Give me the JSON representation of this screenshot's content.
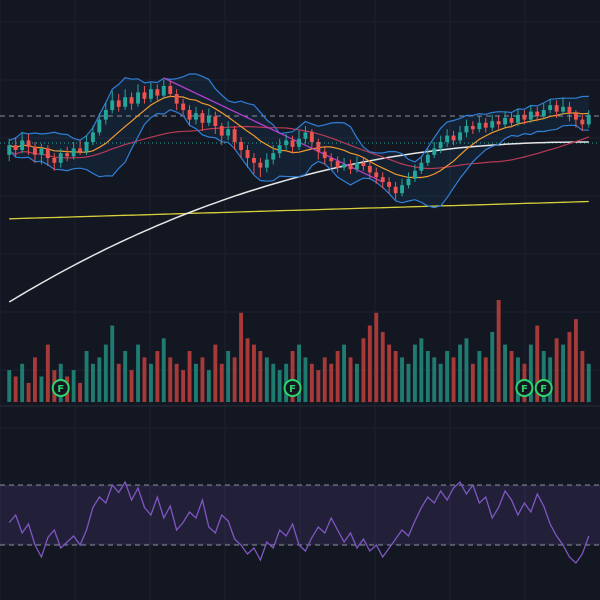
{
  "theme": {
    "background": "#131722",
    "grid": "#1e2230",
    "up": "#26a69a",
    "down": "#ef5350",
    "vol_up": "#1f7a70",
    "vol_down": "#a53a38",
    "bb": "#2f7fd6",
    "bb_fill": "rgba(33,150,243,0.08)",
    "ma_fast": "#f29a2e",
    "ma_mid": "#b83a55",
    "ma_200": "#e6e6e6",
    "ma_long": "#d9cf3b",
    "trendline": "#b23fd0",
    "rsi_line": "#7e57c2",
    "rsi_band": "rgba(126,87,194,0.14)",
    "dash": "#8a8f9c",
    "marker": "#2fd36b",
    "price_line": "#26a69a"
  },
  "icons": {
    "event_marker": "earnings-flag-icon"
  },
  "markers": [
    {
      "label": "F",
      "bar": 8
    },
    {
      "label": "F",
      "bar": 44
    },
    {
      "label": "F",
      "bar": 80
    },
    {
      "label": "F",
      "bar": 83
    }
  ],
  "chart_data": [
    {
      "type": "candlestick",
      "title": "",
      "xlabel": "",
      "ylabel": "",
      "grid": true,
      "ylim": [
        0,
        100
      ],
      "candles": [
        {
          "o": 52,
          "c": 58,
          "h": 62,
          "l": 48
        },
        {
          "o": 58,
          "c": 55,
          "h": 63,
          "l": 51
        },
        {
          "o": 55,
          "c": 61,
          "h": 66,
          "l": 53
        },
        {
          "o": 61,
          "c": 57,
          "h": 65,
          "l": 52
        },
        {
          "o": 57,
          "c": 52,
          "h": 60,
          "l": 47
        },
        {
          "o": 52,
          "c": 56,
          "h": 59,
          "l": 46
        },
        {
          "o": 56,
          "c": 50,
          "h": 58,
          "l": 45
        },
        {
          "o": 50,
          "c": 47,
          "h": 53,
          "l": 42
        },
        {
          "o": 47,
          "c": 53,
          "h": 56,
          "l": 44
        },
        {
          "o": 53,
          "c": 51,
          "h": 57,
          "l": 48
        },
        {
          "o": 51,
          "c": 56,
          "h": 60,
          "l": 49
        },
        {
          "o": 56,
          "c": 54,
          "h": 61,
          "l": 52
        },
        {
          "o": 54,
          "c": 60,
          "h": 64,
          "l": 52
        },
        {
          "o": 60,
          "c": 66,
          "h": 70,
          "l": 58
        },
        {
          "o": 66,
          "c": 74,
          "h": 78,
          "l": 64
        },
        {
          "o": 74,
          "c": 80,
          "h": 85,
          "l": 71
        },
        {
          "o": 80,
          "c": 86,
          "h": 92,
          "l": 78
        },
        {
          "o": 86,
          "c": 82,
          "h": 90,
          "l": 79
        },
        {
          "o": 82,
          "c": 88,
          "h": 93,
          "l": 80
        },
        {
          "o": 88,
          "c": 84,
          "h": 91,
          "l": 80
        },
        {
          "o": 84,
          "c": 91,
          "h": 96,
          "l": 82
        },
        {
          "o": 91,
          "c": 87,
          "h": 95,
          "l": 84
        },
        {
          "o": 87,
          "c": 93,
          "h": 97,
          "l": 85
        },
        {
          "o": 93,
          "c": 89,
          "h": 96,
          "l": 86
        },
        {
          "o": 89,
          "c": 95,
          "h": 99,
          "l": 87
        },
        {
          "o": 95,
          "c": 90,
          "h": 98,
          "l": 88
        },
        {
          "o": 90,
          "c": 84,
          "h": 93,
          "l": 80
        },
        {
          "o": 84,
          "c": 80,
          "h": 87,
          "l": 77
        },
        {
          "o": 80,
          "c": 74,
          "h": 83,
          "l": 70
        },
        {
          "o": 74,
          "c": 78,
          "h": 82,
          "l": 71
        },
        {
          "o": 78,
          "c": 72,
          "h": 80,
          "l": 67
        },
        {
          "o": 72,
          "c": 76,
          "h": 81,
          "l": 70
        },
        {
          "o": 76,
          "c": 70,
          "h": 79,
          "l": 65
        },
        {
          "o": 70,
          "c": 64,
          "h": 72,
          "l": 58
        },
        {
          "o": 64,
          "c": 68,
          "h": 73,
          "l": 61
        },
        {
          "o": 68,
          "c": 60,
          "h": 70,
          "l": 55
        },
        {
          "o": 60,
          "c": 55,
          "h": 63,
          "l": 50
        },
        {
          "o": 55,
          "c": 50,
          "h": 58,
          "l": 44
        },
        {
          "o": 50,
          "c": 47,
          "h": 53,
          "l": 40
        },
        {
          "o": 47,
          "c": 44,
          "h": 50,
          "l": 38
        },
        {
          "o": 44,
          "c": 49,
          "h": 53,
          "l": 41
        },
        {
          "o": 49,
          "c": 53,
          "h": 58,
          "l": 46
        },
        {
          "o": 53,
          "c": 58,
          "h": 62,
          "l": 50
        },
        {
          "o": 58,
          "c": 61,
          "h": 65,
          "l": 55
        },
        {
          "o": 61,
          "c": 57,
          "h": 64,
          "l": 53
        },
        {
          "o": 57,
          "c": 62,
          "h": 67,
          "l": 55
        },
        {
          "o": 62,
          "c": 66,
          "h": 70,
          "l": 59
        },
        {
          "o": 66,
          "c": 60,
          "h": 68,
          "l": 56
        },
        {
          "o": 60,
          "c": 54,
          "h": 62,
          "l": 49
        },
        {
          "o": 54,
          "c": 50,
          "h": 57,
          "l": 46
        },
        {
          "o": 50,
          "c": 48,
          "h": 53,
          "l": 44
        },
        {
          "o": 48,
          "c": 44,
          "h": 51,
          "l": 41
        },
        {
          "o": 44,
          "c": 46,
          "h": 50,
          "l": 42
        },
        {
          "o": 46,
          "c": 43,
          "h": 49,
          "l": 40
        },
        {
          "o": 43,
          "c": 47,
          "h": 51,
          "l": 41
        },
        {
          "o": 47,
          "c": 45,
          "h": 50,
          "l": 42
        },
        {
          "o": 45,
          "c": 41,
          "h": 48,
          "l": 37
        },
        {
          "o": 41,
          "c": 38,
          "h": 44,
          "l": 34
        },
        {
          "o": 38,
          "c": 35,
          "h": 41,
          "l": 31
        },
        {
          "o": 35,
          "c": 32,
          "h": 38,
          "l": 28
        },
        {
          "o": 32,
          "c": 28,
          "h": 35,
          "l": 24
        },
        {
          "o": 28,
          "c": 33,
          "h": 37,
          "l": 26
        },
        {
          "o": 33,
          "c": 37,
          "h": 41,
          "l": 31
        },
        {
          "o": 37,
          "c": 42,
          "h": 46,
          "l": 35
        },
        {
          "o": 42,
          "c": 47,
          "h": 51,
          "l": 40
        },
        {
          "o": 47,
          "c": 52,
          "h": 56,
          "l": 45
        },
        {
          "o": 52,
          "c": 56,
          "h": 60,
          "l": 50
        },
        {
          "o": 56,
          "c": 60,
          "h": 64,
          "l": 53
        },
        {
          "o": 60,
          "c": 64,
          "h": 68,
          "l": 57
        },
        {
          "o": 64,
          "c": 61,
          "h": 67,
          "l": 58
        },
        {
          "o": 61,
          "c": 66,
          "h": 70,
          "l": 59
        },
        {
          "o": 66,
          "c": 70,
          "h": 74,
          "l": 63
        },
        {
          "o": 70,
          "c": 68,
          "h": 73,
          "l": 65
        },
        {
          "o": 68,
          "c": 72,
          "h": 76,
          "l": 66
        },
        {
          "o": 72,
          "c": 69,
          "h": 75,
          "l": 66
        },
        {
          "o": 69,
          "c": 73,
          "h": 77,
          "l": 67
        },
        {
          "o": 73,
          "c": 71,
          "h": 76,
          "l": 68
        },
        {
          "o": 71,
          "c": 75,
          "h": 79,
          "l": 69
        },
        {
          "o": 75,
          "c": 72,
          "h": 78,
          "l": 69
        },
        {
          "o": 72,
          "c": 77,
          "h": 81,
          "l": 70
        },
        {
          "o": 77,
          "c": 74,
          "h": 80,
          "l": 71
        },
        {
          "o": 74,
          "c": 79,
          "h": 83,
          "l": 72
        },
        {
          "o": 79,
          "c": 76,
          "h": 82,
          "l": 73
        },
        {
          "o": 76,
          "c": 80,
          "h": 84,
          "l": 74
        },
        {
          "o": 80,
          "c": 83,
          "h": 87,
          "l": 78
        },
        {
          "o": 83,
          "c": 79,
          "h": 86,
          "l": 75
        },
        {
          "o": 79,
          "c": 82,
          "h": 88,
          "l": 77
        },
        {
          "o": 82,
          "c": 78,
          "h": 85,
          "l": 73
        },
        {
          "o": 78,
          "c": 74,
          "h": 80,
          "l": 69
        },
        {
          "o": 74,
          "c": 71,
          "h": 77,
          "l": 67
        },
        {
          "o": 71,
          "c": 77,
          "h": 80,
          "l": 69
        }
      ],
      "volume": [
        5,
        4,
        6,
        3,
        7,
        4,
        9,
        5,
        6,
        4,
        5,
        3,
        8,
        6,
        7,
        9,
        12,
        6,
        8,
        5,
        9,
        7,
        6,
        8,
        10,
        7,
        6,
        5,
        8,
        6,
        7,
        5,
        9,
        6,
        8,
        7,
        14,
        10,
        9,
        8,
        7,
        6,
        5,
        6,
        8,
        9,
        7,
        6,
        5,
        7,
        6,
        8,
        9,
        7,
        6,
        10,
        12,
        14,
        11,
        9,
        8,
        7,
        6,
        9,
        10,
        8,
        7,
        6,
        8,
        7,
        9,
        10,
        6,
        8,
        7,
        11,
        16,
        9,
        8,
        7,
        6,
        9,
        12,
        8,
        7,
        10,
        9,
        11,
        13,
        8,
        6
      ]
    },
    {
      "type": "line",
      "title": "",
      "xlabel": "",
      "ylabel": "",
      "grid": true,
      "ylim": [
        0,
        100
      ],
      "bands": [
        70,
        30
      ],
      "values": [
        45,
        50,
        38,
        44,
        30,
        22,
        35,
        40,
        28,
        32,
        36,
        30,
        40,
        55,
        62,
        58,
        70,
        65,
        72,
        60,
        68,
        55,
        50,
        62,
        48,
        56,
        40,
        45,
        52,
        48,
        60,
        42,
        38,
        50,
        46,
        34,
        30,
        24,
        28,
        20,
        32,
        28,
        40,
        36,
        44,
        30,
        26,
        35,
        42,
        38,
        48,
        40,
        32,
        38,
        28,
        34,
        26,
        30,
        22,
        28,
        34,
        40,
        36,
        46,
        55,
        62,
        58,
        66,
        60,
        68,
        72,
        64,
        70,
        58,
        62,
        48,
        55,
        66,
        60,
        50,
        58,
        52,
        64,
        56,
        44,
        36,
        30,
        22,
        18,
        24,
        36
      ]
    }
  ]
}
